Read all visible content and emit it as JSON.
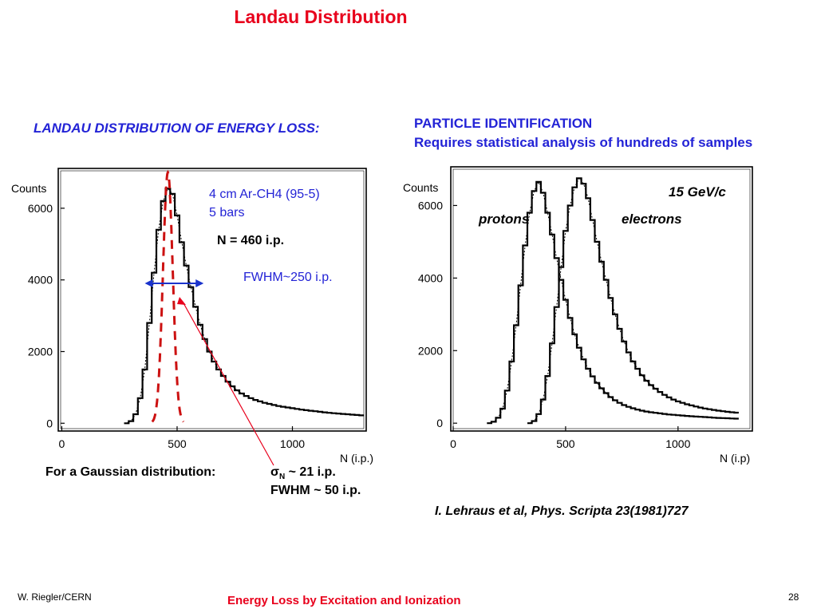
{
  "slide": {
    "title": "Landau Distribution",
    "left_heading": "LANDAU DISTRIBUTION OF ENERGY LOSS:",
    "right_heading_1": "PARTICLE IDENTIFICATION",
    "right_heading_2": "Requires statistical analysis of hundreds of samples",
    "gaussian_label": "For a Gaussian distribution:",
    "gaussian_sigma_symbol": "σ",
    "gaussian_sigma_sub": "N",
    "gaussian_sigma_value": " ~ 21 i.p.",
    "gaussian_fwhm": "FWHM ~ 50 i.p.",
    "reference": "I. Lehraus et al, Phys. Scripta 23(1981)727",
    "footer_left": "W. Riegler/CERN",
    "footer_center": "Energy Loss by Excitation and Ionization",
    "page_number": "28"
  },
  "colors": {
    "title_red": "#e8001c",
    "heading_blue": "#2323d6",
    "gauss_dashed": "#cc1111",
    "arrow_blue": "#1a33cc",
    "pointer_red": "#e8001c"
  },
  "chart_data": [
    {
      "type": "histogram",
      "ylabel": "Counts",
      "xlabel": "N (i.p.)",
      "xlim": [
        -5,
        1320
      ],
      "ylim": [
        -150,
        7000
      ],
      "x_ticks": [
        0,
        500,
        1000
      ],
      "y_ticks": [
        0,
        2000,
        4000,
        6000
      ],
      "annotations": {
        "gas": "4 cm Ar-CH4 (95-5)",
        "pressure": "5 bars",
        "mean": "N = 460 i.p.",
        "fwhm": "FWHM~250 i.p."
      },
      "fwhm_range": [
        360,
        615
      ],
      "gaussian_overlay": {
        "mean": 460,
        "fwhm": 50,
        "peak": 7000
      },
      "series": [
        {
          "x": [
            270,
            290,
            310,
            330,
            350,
            370,
            390,
            410,
            430,
            450,
            470,
            490,
            510,
            530,
            550,
            570,
            590,
            610,
            630,
            650,
            670,
            690,
            710,
            730,
            750,
            770,
            790,
            810,
            830,
            850,
            870,
            890,
            910,
            930,
            950,
            970,
            990,
            1010,
            1030,
            1050,
            1070,
            1090,
            1110,
            1130,
            1150,
            1170,
            1190,
            1210,
            1230,
            1250,
            1270,
            1290
          ],
          "values": [
            0,
            60,
            250,
            700,
            1500,
            2800,
            4200,
            5400,
            6200,
            6550,
            6400,
            5800,
            5050,
            4400,
            3800,
            3250,
            2750,
            2350,
            2000,
            1720,
            1500,
            1320,
            1160,
            1030,
            920,
            830,
            760,
            700,
            650,
            610,
            570,
            540,
            510,
            480,
            460,
            440,
            420,
            400,
            380,
            365,
            350,
            335,
            320,
            305,
            290,
            280,
            270,
            260,
            250,
            240,
            230,
            220
          ]
        }
      ]
    },
    {
      "type": "histogram",
      "ylabel": "Counts",
      "xlabel": "N (i.p)",
      "xlim": [
        0,
        1320
      ],
      "ylim": [
        -150,
        7000
      ],
      "x_ticks": [
        0,
        500,
        1000
      ],
      "y_ticks": [
        0,
        2000,
        4000,
        6000
      ],
      "annotations": {
        "momentum": "15 GeV/c"
      },
      "series": [
        {
          "name": "protons",
          "x": [
            150,
            170,
            190,
            210,
            230,
            250,
            270,
            290,
            310,
            330,
            350,
            370,
            390,
            410,
            430,
            450,
            470,
            490,
            510,
            530,
            550,
            570,
            590,
            610,
            630,
            650,
            670,
            690,
            710,
            730,
            750,
            770,
            790,
            810,
            830,
            850,
            870,
            890,
            910,
            930,
            950,
            970,
            990,
            1010,
            1030,
            1050,
            1070,
            1090,
            1110,
            1130,
            1150,
            1170,
            1190,
            1210,
            1230,
            1250
          ],
          "values": [
            0,
            40,
            150,
            400,
            900,
            1700,
            2700,
            3800,
            4900,
            5800,
            6400,
            6650,
            6350,
            5800,
            5200,
            4550,
            3950,
            3400,
            2900,
            2450,
            2080,
            1760,
            1500,
            1290,
            1110,
            960,
            830,
            720,
            630,
            560,
            500,
            450,
            410,
            375,
            345,
            320,
            300,
            285,
            270,
            255,
            240,
            230,
            220,
            210,
            200,
            190,
            182,
            175,
            168,
            160,
            152,
            145,
            140,
            135,
            130,
            125
          ]
        },
        {
          "name": "electrons",
          "x": [
            330,
            350,
            370,
            390,
            410,
            430,
            450,
            470,
            490,
            510,
            530,
            550,
            570,
            590,
            610,
            630,
            650,
            670,
            690,
            710,
            730,
            750,
            770,
            790,
            810,
            830,
            850,
            870,
            890,
            910,
            930,
            950,
            970,
            990,
            1010,
            1030,
            1050,
            1070,
            1090,
            1110,
            1130,
            1150,
            1170,
            1190,
            1210,
            1230,
            1250
          ],
          "values": [
            0,
            60,
            250,
            650,
            1300,
            2200,
            3200,
            4300,
            5300,
            6000,
            6500,
            6750,
            6600,
            6200,
            5600,
            5000,
            4450,
            3950,
            3450,
            3000,
            2600,
            2250,
            1950,
            1700,
            1500,
            1320,
            1170,
            1050,
            950,
            860,
            780,
            710,
            650,
            600,
            560,
            520,
            490,
            460,
            430,
            405,
            385,
            365,
            345,
            330,
            315,
            300,
            290
          ]
        }
      ]
    }
  ]
}
